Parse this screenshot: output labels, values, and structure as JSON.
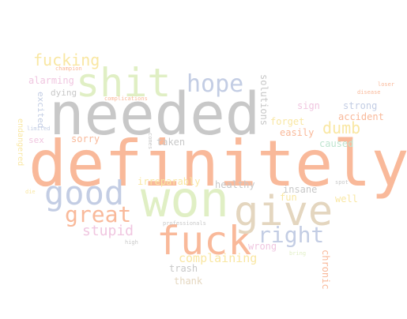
{
  "words": {
    "definitely": "definitely",
    "needed": "needed",
    "won": "won",
    "shit": "shit",
    "fuck": "fuck",
    "give": "give",
    "good": "good",
    "hope": "hope",
    "great": "great",
    "fucking": "fucking",
    "right": "right",
    "dumb": "dumb",
    "stupid": "stupid",
    "complaining": "complaining",
    "alarming": "alarming",
    "dying": "dying",
    "excited": "excited",
    "sorry": "sorry",
    "sex": "sex",
    "taken": "taken",
    "sign": "sign",
    "strong": "strong",
    "accident": "accident",
    "forget": "forget",
    "easily": "easily",
    "caused": "caused",
    "solutions": "solutions",
    "healthy": "healthy",
    "insane": "insane",
    "fun": "fun",
    "well": "well",
    "wrong": "wrong",
    "trash": "trash",
    "thank": "thank",
    "chronic": "chronic",
    "endangered": "endangered",
    "irreparably": "irreparably",
    "complications": "complications",
    "champion": "champion",
    "disease": "disease",
    "loser": "loser",
    "professionals": "professionals",
    "high": "high",
    "bring": "bring",
    "spot": "spot",
    "limited": "limited",
    "comes": "comes",
    "die": "die"
  },
  "colors": {
    "peach": "#f9b99a",
    "gray": "#c8c8c8",
    "green": "#e0efc4",
    "blue": "#c3cde4",
    "pink": "#f0c6e0",
    "yellow": "#f9e7a3",
    "tan": "#e4d6bf",
    "mint": "#bfe5d0"
  }
}
